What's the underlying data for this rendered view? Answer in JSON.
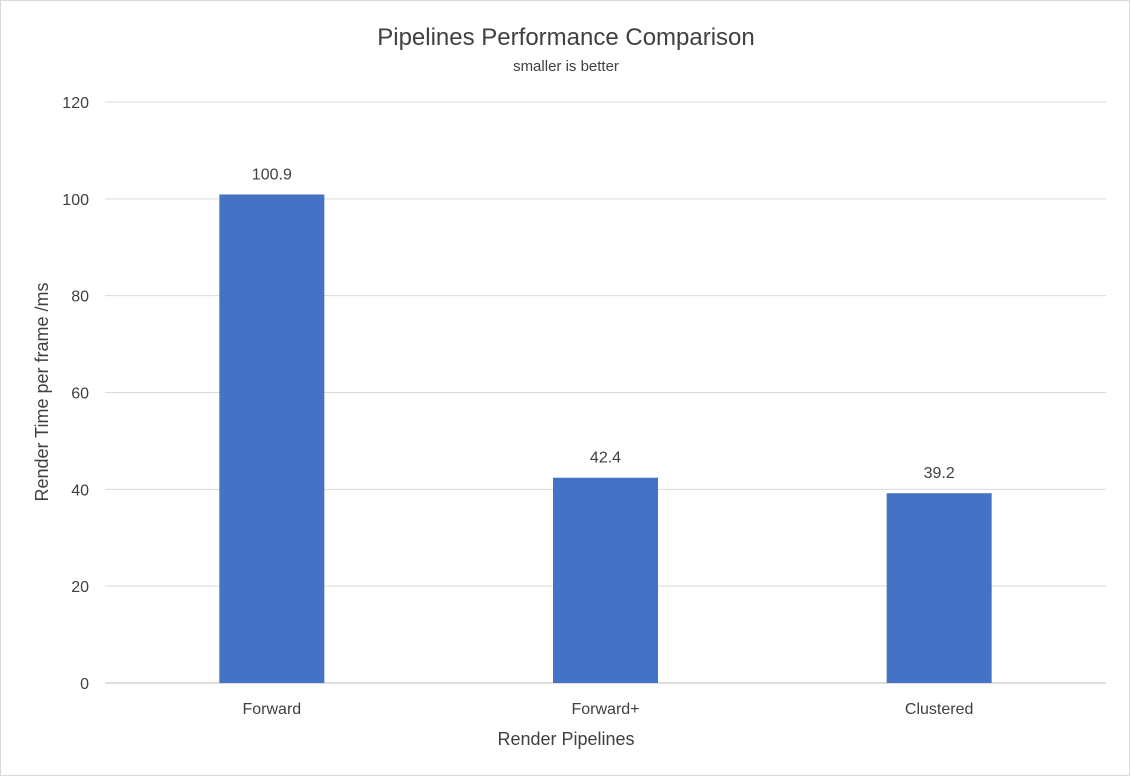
{
  "chart_data": {
    "type": "bar",
    "title": "Pipelines Performance Comparison",
    "subtitle": "smaller is better",
    "xlabel": "Render Pipelines",
    "ylabel": "Render Time per frame /ms",
    "categories": [
      "Forward",
      "Forward+",
      "Clustered"
    ],
    "values": [
      100.9,
      42.4,
      39.2
    ],
    "data_labels": [
      "100.9",
      "42.4",
      "39.2"
    ],
    "ylim": [
      0,
      120
    ],
    "yticks": [
      0,
      20,
      40,
      60,
      80,
      100,
      120
    ],
    "grid": true,
    "legend": "none",
    "colors": {
      "bar": "#4472c4",
      "gridline": "#d9d9d9",
      "text": "#404040"
    }
  }
}
